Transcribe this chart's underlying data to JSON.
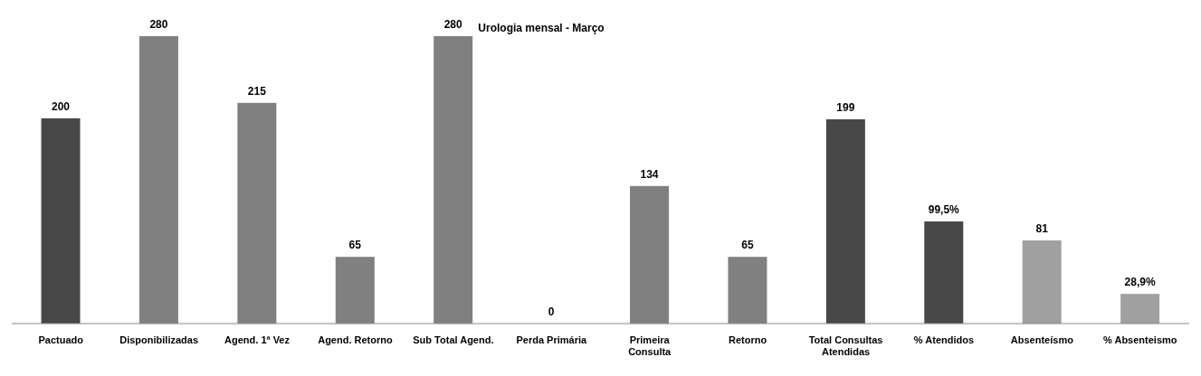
{
  "chart_data": {
    "type": "bar",
    "title": "Urologia mensal  - Março",
    "categories": [
      "Pactuado",
      "Disponibilizadas",
      "Agend. 1ª Vez",
      "Agend. Retorno",
      "Sub Total Agend.",
      "Perda Primária",
      "Primeira Consulta",
      "Retorno",
      "Total Consultas Atendidas",
      "% Atendidos",
      "Absenteísmo",
      "% Absenteismo"
    ],
    "values": [
      200,
      280,
      215,
      65,
      280,
      0,
      134,
      65,
      199,
      99.5,
      81,
      28.9
    ],
    "colors": [
      "#484848",
      "#808080",
      "#808080",
      "#808080",
      "#808080",
      "#808080",
      "#808080",
      "#808080",
      "#484848",
      "#484848",
      "#a0a0a0",
      "#a0a0a0"
    ],
    "value_labels": [
      "200",
      "280",
      "215",
      "65",
      "280",
      "0",
      "134",
      "65",
      "199",
      "99,5%",
      "81",
      "28,9%"
    ]
  }
}
